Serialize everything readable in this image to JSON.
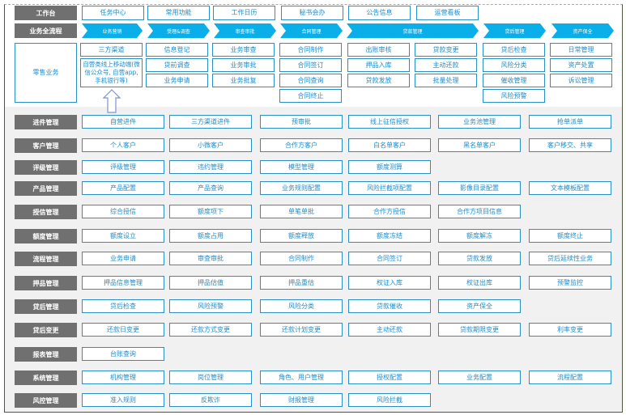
{
  "workbench": {
    "label": "工作台",
    "items": [
      "任务中心",
      "常用功能",
      "工作日历",
      "秘书会办",
      "公告信息",
      "运营看板"
    ]
  },
  "process": {
    "label": "业务全流程",
    "stages": [
      "业务营销",
      "受理&调查",
      "审查审批",
      "合同管理",
      "贷款管理",
      "贷后管理",
      "资产保全"
    ]
  },
  "retail": {
    "label": "零售业务",
    "columns": [
      [
        "三方渠道",
        "自营类线上移动端(微信公众号, 自营app, 手机银行等)"
      ],
      [
        "信息登记",
        "贷前调查",
        "业务申请"
      ],
      [
        "业务审查",
        "业务审批",
        "业务批复"
      ],
      [
        "合同制作",
        "合同签订",
        "合同查询",
        "合同终止"
      ],
      [
        "出账审核",
        "押品入库",
        "贷款发放"
      ],
      [
        "贷款变更",
        "主动还款",
        "批量处理"
      ],
      [
        "贷后检查",
        "风险分类",
        "催收管理",
        "风险预警"
      ],
      [
        "日常管理",
        "资产处置",
        "诉讼管理"
      ]
    ]
  },
  "modules": [
    {
      "label": "进件管理",
      "items": [
        "自营进件",
        "三方渠道进件",
        "预审批",
        "线上征信授权",
        "业务池管理",
        "抢单派单"
      ]
    },
    {
      "label": "客户管理",
      "items": [
        "个人客户",
        "小微客户",
        "合作方客户",
        "白名单客户",
        "黑名单客户",
        "客户移交、共享"
      ]
    },
    {
      "label": "评级管理",
      "items": [
        "评级管理",
        "违约管理",
        "模型管理",
        "额度测算"
      ]
    },
    {
      "label": "产品管理",
      "items": [
        "产品配置",
        "产品查询",
        "业务规则配置",
        "风险拦截项配置",
        "影像目录配置",
        "文本模板配置"
      ]
    },
    {
      "label": "授信管理",
      "items": [
        "综合授信",
        "额度项下",
        "单笔单批",
        "合作方授信",
        "合作方项目信息"
      ]
    },
    {
      "label": "额度管理",
      "items": [
        "额度设立",
        "额度占用",
        "额度释放",
        "额度冻结",
        "额度解冻",
        "额度终止"
      ]
    },
    {
      "label": "流程管理",
      "items": [
        "业务申请",
        "审查审批",
        "合同制作",
        "合同签订",
        "贷款发放",
        "贷后延续性业务"
      ]
    },
    {
      "label": "押品管理",
      "items": [
        "押品信息管理",
        "押品估值",
        "押品重估",
        "权证入库",
        "权证出库",
        "预警监控"
      ]
    },
    {
      "label": "贷后管理",
      "items": [
        "贷后检查",
        "风险预警",
        "风险分类",
        "贷款催收",
        "资产保全"
      ]
    },
    {
      "label": "贷后变更",
      "items": [
        "还款日变更",
        "还款方式变更",
        "还款计划变更",
        "主动还款",
        "贷款期限变更",
        "利率变更"
      ]
    },
    {
      "label": "报表管理",
      "items": [
        "台账查询"
      ]
    },
    {
      "label": "系统管理",
      "items": [
        "机构管理",
        "岗位管理",
        "角色、用户管理",
        "授权配置",
        "业务配置",
        "流程配置"
      ]
    },
    {
      "label": "风控管理",
      "items": [
        "准入规则",
        "反欺诈",
        "财报管理",
        "风险拦截"
      ]
    }
  ],
  "colors": {
    "label_bg": "#707070",
    "box_border": "#2a8fc4",
    "box_text": "#1f8ccc",
    "chevron": "#0aaee8",
    "lower_bg": "#f1f1f1"
  }
}
